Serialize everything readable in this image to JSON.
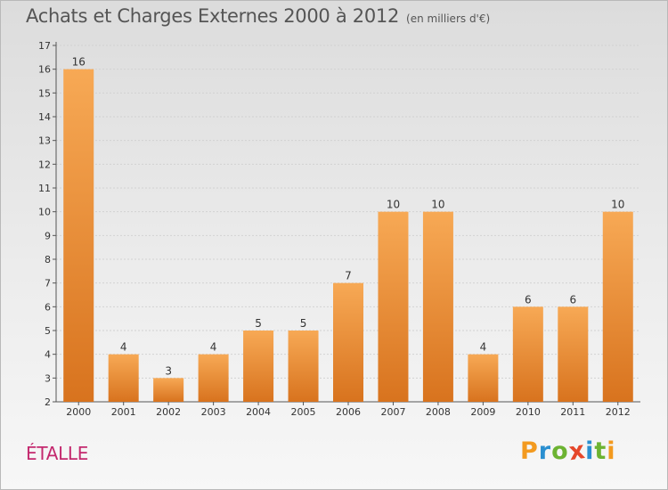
{
  "header": {
    "title": "Achats et Charges Externes 2000 à 2012",
    "unit": "(en milliers d'€)"
  },
  "commune": "ÉTALLE",
  "brand": {
    "letters": [
      "P",
      "r",
      "o",
      "x",
      "i",
      "t",
      "i"
    ],
    "colors": [
      "#f39a1f",
      "#2a8fd0",
      "#6cb332",
      "#e5472a",
      "#2a8fd0",
      "#6cb332",
      "#f39a1f"
    ]
  },
  "colors": {
    "bar_top": "#f7a955",
    "bar_bottom": "#d8731e",
    "grid": "#d2d2d2",
    "axis_text": "#333333"
  },
  "chart_data": {
    "type": "bar",
    "title": "Achats et Charges Externes 2000 à 2012",
    "subtitle": "(en milliers d'€)",
    "categories": [
      "2000",
      "2001",
      "2002",
      "2003",
      "2004",
      "2005",
      "2006",
      "2007",
      "2008",
      "2009",
      "2010",
      "2011",
      "2012"
    ],
    "values": [
      16,
      4,
      3,
      4,
      5,
      5,
      7,
      10,
      10,
      4,
      6,
      6,
      10
    ],
    "value_labels": [
      "16",
      "4",
      "3",
      "4",
      "5",
      "5",
      "7",
      "10",
      "10",
      "4",
      "6",
      "6",
      "10"
    ],
    "ylim": [
      2,
      17
    ],
    "yticks": [
      "2",
      "3",
      "4",
      "5",
      "6",
      "7",
      "8",
      "9",
      "10",
      "11",
      "12",
      "13",
      "14",
      "15",
      "16",
      "17"
    ],
    "grid": true
  }
}
